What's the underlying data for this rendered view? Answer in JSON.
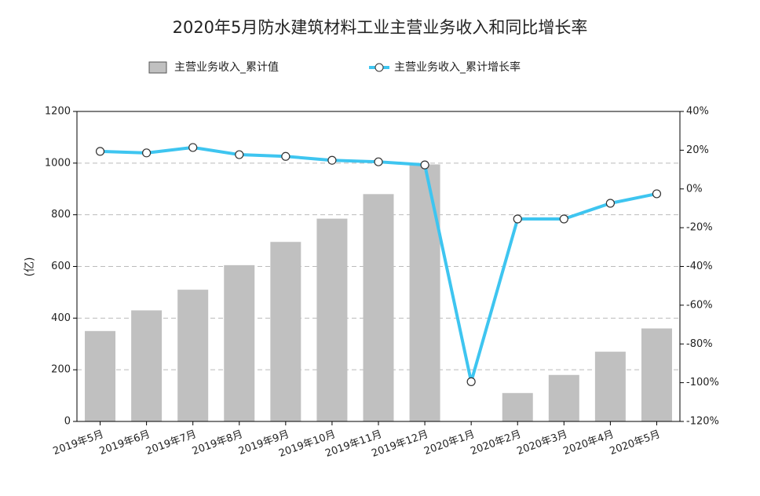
{
  "chart_data": {
    "type": "bar",
    "title": "2020年5月防水建筑材料工业主营业务收入和同比增长率",
    "y_label": "(亿)",
    "categories": [
      "2019年5月",
      "2019年6月",
      "2019年7月",
      "2019年8月",
      "2019年9月",
      "2019年10月",
      "2019年11月",
      "2019年12月",
      "2020年1月",
      "2020年2月",
      "2020年3月",
      "2020年4月",
      "2020年5月"
    ],
    "series": [
      {
        "name": "主营业务收入_累计值",
        "type": "bar",
        "color": "#c0c0c0",
        "values": [
          350,
          430,
          510,
          605,
          695,
          785,
          880,
          995,
          null,
          110,
          180,
          270,
          360
        ]
      },
      {
        "name": "主营业务收入_累计增长率",
        "type": "line",
        "axis": "y2",
        "color": "#3ec5f0",
        "values": [
          19.4,
          18.6,
          21.4,
          17.7,
          16.8,
          14.8,
          14.0,
          12.4,
          -99.5,
          -15.5,
          -15.5,
          -7.4,
          -2.5
        ]
      }
    ],
    "ylim": [
      0,
      1200
    ],
    "yticks": [
      0,
      200,
      400,
      600,
      800,
      1000,
      1200
    ],
    "y2lim": [
      -120,
      40
    ],
    "y2ticks": [
      {
        "value": -120,
        "label": "-120%"
      },
      {
        "value": -100,
        "label": "-100%"
      },
      {
        "value": -80,
        "label": "-80%"
      },
      {
        "value": -60,
        "label": "-60%"
      },
      {
        "value": -40,
        "label": "-40%"
      },
      {
        "value": -20,
        "label": "-20%"
      },
      {
        "value": 0,
        "label": "0%"
      },
      {
        "value": 20,
        "label": "20%"
      },
      {
        "value": 40,
        "label": "40%"
      }
    ],
    "grid": true,
    "legend": "top"
  }
}
